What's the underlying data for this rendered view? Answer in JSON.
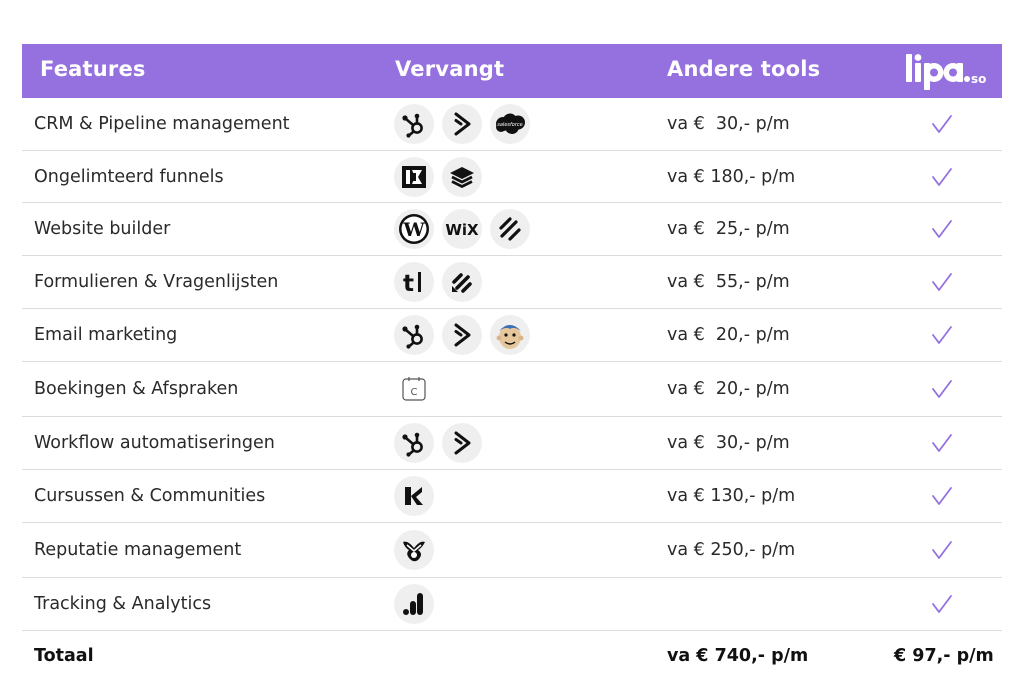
{
  "header": {
    "features": "Features",
    "vervangt": "Vervangt",
    "andere_tools": "Andere tools",
    "brand_logo_text": "lipa.so"
  },
  "colors": {
    "header_bg": "#9570df",
    "check": "#9570df"
  },
  "rows": [
    {
      "feature": "CRM & Pipeline management",
      "icons": [
        "hubspot-icon",
        "activecampaign-icon",
        "salesforce-icon"
      ],
      "price": "va €  30,- p/m",
      "included": true
    },
    {
      "feature": "Ongelimteerd funnels",
      "icons": [
        "clickfunnels-icon",
        "leadpages-icon"
      ],
      "price": "va € 180,- p/m",
      "included": true
    },
    {
      "feature": "Website builder",
      "icons": [
        "wordpress-icon",
        "wix-icon",
        "squarespace-icon"
      ],
      "price": "va €  25,- p/m",
      "included": true
    },
    {
      "feature": "Formulieren & Vragenlijsten",
      "icons": [
        "typeform-icon",
        "jotform-icon"
      ],
      "price": "va €  55,- p/m",
      "included": true
    },
    {
      "feature": "Email marketing",
      "icons": [
        "hubspot-icon",
        "activecampaign-icon",
        "mailchimp-icon"
      ],
      "price": "va €  20,- p/m",
      "included": true
    },
    {
      "feature": "Boekingen & Afspraken",
      "icons": [
        "calendly-icon"
      ],
      "price": "va €  20,- p/m",
      "included": true
    },
    {
      "feature": "Workflow automatiseringen",
      "icons": [
        "hubspot-icon",
        "activecampaign-icon"
      ],
      "price": "va €  30,- p/m",
      "included": true
    },
    {
      "feature": "Cursussen & Communities",
      "icons": [
        "kajabi-icon"
      ],
      "price": "va € 130,- p/m",
      "included": true
    },
    {
      "feature": "Reputatie management",
      "icons": [
        "birdeye-icon"
      ],
      "price": "va € 250,- p/m",
      "included": true
    },
    {
      "feature": "Tracking & Analytics",
      "icons": [
        "google-analytics-icon"
      ],
      "price": "",
      "included": true
    }
  ],
  "total": {
    "label": "Totaal",
    "other_tools_price": "va € 740,- p/m",
    "lipa_price": "€ 97,- p/m"
  }
}
